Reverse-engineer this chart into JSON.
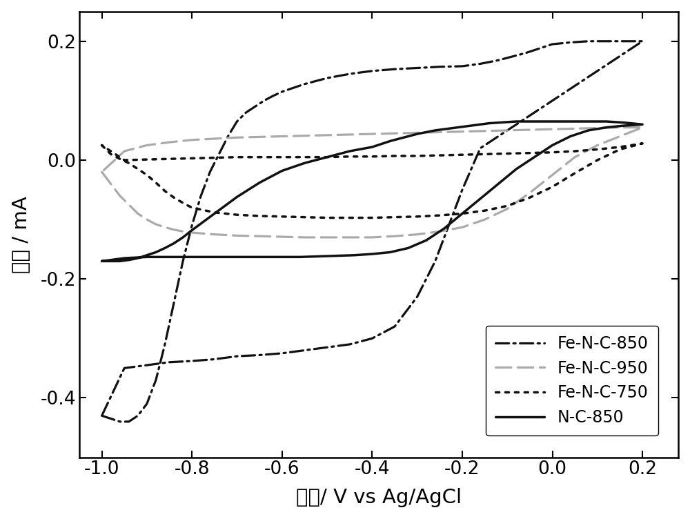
{
  "xlabel": "电势/ V vs Ag/AgCl",
  "ylabel": "电流 / mA",
  "xlim": [
    -1.05,
    0.28
  ],
  "ylim": [
    -0.5,
    0.25
  ],
  "xticks": [
    -1.0,
    -0.8,
    -0.6,
    -0.4,
    -0.2,
    0.0,
    0.2
  ],
  "yticks": [
    -0.4,
    -0.2,
    0.0,
    0.2
  ],
  "background_color": "#ffffff",
  "series": [
    {
      "label": "Fe-N-C-850",
      "color": "#111111",
      "linestyle": "dashdot",
      "linewidth": 2.3,
      "x": [
        -1.0,
        -0.98,
        -0.96,
        -0.94,
        -0.92,
        -0.9,
        -0.88,
        -0.86,
        -0.84,
        -0.82,
        -0.8,
        -0.78,
        -0.76,
        -0.74,
        -0.72,
        -0.7,
        -0.68,
        -0.66,
        -0.64,
        -0.62,
        -0.6,
        -0.55,
        -0.5,
        -0.45,
        -0.4,
        -0.35,
        -0.3,
        -0.25,
        -0.2,
        -0.18,
        -0.16,
        -0.14,
        -0.12,
        -0.1,
        -0.08,
        -0.06,
        -0.04,
        -0.02,
        0.0,
        0.04,
        0.08,
        0.12,
        0.16,
        0.2,
        0.2,
        0.18,
        0.16,
        0.14,
        0.12,
        0.1,
        0.08,
        0.06,
        0.04,
        0.02,
        0.0,
        -0.04,
        -0.08,
        -0.12,
        -0.16,
        -0.2,
        -0.24,
        -0.26,
        -0.28,
        -0.3,
        -0.35,
        -0.4,
        -0.45,
        -0.5,
        -0.55,
        -0.6,
        -0.65,
        -0.7,
        -0.75,
        -0.8,
        -0.85,
        -0.9,
        -0.95,
        -1.0
      ],
      "y": [
        -0.43,
        -0.435,
        -0.44,
        -0.44,
        -0.43,
        -0.41,
        -0.37,
        -0.31,
        -0.24,
        -0.17,
        -0.11,
        -0.06,
        -0.02,
        0.01,
        0.04,
        0.065,
        0.08,
        0.09,
        0.1,
        0.108,
        0.115,
        0.128,
        0.138,
        0.145,
        0.15,
        0.153,
        0.155,
        0.157,
        0.158,
        0.16,
        0.162,
        0.165,
        0.168,
        0.172,
        0.176,
        0.18,
        0.185,
        0.19,
        0.195,
        0.198,
        0.2,
        0.2,
        0.2,
        0.2,
        0.2,
        0.19,
        0.18,
        0.17,
        0.16,
        0.15,
        0.14,
        0.13,
        0.12,
        0.11,
        0.1,
        0.08,
        0.06,
        0.04,
        0.02,
        -0.05,
        -0.13,
        -0.17,
        -0.2,
        -0.23,
        -0.28,
        -0.3,
        -0.31,
        -0.315,
        -0.32,
        -0.325,
        -0.328,
        -0.33,
        -0.335,
        -0.338,
        -0.34,
        -0.345,
        -0.35,
        -0.43
      ]
    },
    {
      "label": "Fe-N-C-950",
      "color": "#aaaaaa",
      "linestyle": "dashed",
      "linewidth": 2.3,
      "x": [
        -1.0,
        -0.98,
        -0.96,
        -0.94,
        -0.92,
        -0.9,
        -0.88,
        -0.86,
        -0.84,
        -0.82,
        -0.8,
        -0.75,
        -0.7,
        -0.65,
        -0.6,
        -0.55,
        -0.5,
        -0.45,
        -0.4,
        -0.35,
        -0.3,
        -0.25,
        -0.2,
        -0.15,
        -0.1,
        -0.05,
        0.0,
        0.05,
        0.1,
        0.15,
        0.2,
        0.2,
        0.15,
        0.1,
        0.05,
        0.0,
        -0.05,
        -0.1,
        -0.15,
        -0.2,
        -0.25,
        -0.3,
        -0.35,
        -0.4,
        -0.45,
        -0.5,
        -0.55,
        -0.6,
        -0.65,
        -0.7,
        -0.75,
        -0.8,
        -0.85,
        -0.9,
        -0.95,
        -1.0
      ],
      "y": [
        -0.02,
        -0.04,
        -0.06,
        -0.075,
        -0.09,
        -0.1,
        -0.108,
        -0.113,
        -0.117,
        -0.12,
        -0.122,
        -0.125,
        -0.127,
        -0.128,
        -0.129,
        -0.13,
        -0.13,
        -0.13,
        -0.13,
        -0.128,
        -0.125,
        -0.12,
        -0.113,
        -0.1,
        -0.082,
        -0.055,
        -0.025,
        0.005,
        0.025,
        0.04,
        0.055,
        0.055,
        0.055,
        0.054,
        0.053,
        0.052,
        0.051,
        0.05,
        0.049,
        0.048,
        0.047,
        0.046,
        0.045,
        0.044,
        0.043,
        0.042,
        0.041,
        0.04,
        0.039,
        0.038,
        0.036,
        0.034,
        0.03,
        0.025,
        0.015,
        -0.02
      ]
    },
    {
      "label": "Fe-N-C-750",
      "color": "#111111",
      "linestyle": "dotted",
      "linewidth": 2.5,
      "x": [
        -1.0,
        -0.98,
        -0.96,
        -0.94,
        -0.92,
        -0.9,
        -0.88,
        -0.86,
        -0.84,
        -0.82,
        -0.8,
        -0.75,
        -0.7,
        -0.65,
        -0.6,
        -0.55,
        -0.5,
        -0.45,
        -0.4,
        -0.35,
        -0.3,
        -0.25,
        -0.2,
        -0.15,
        -0.1,
        -0.05,
        0.0,
        0.05,
        0.1,
        0.15,
        0.2,
        0.2,
        0.15,
        0.1,
        0.05,
        0.0,
        -0.05,
        -0.1,
        -0.15,
        -0.2,
        -0.25,
        -0.3,
        -0.35,
        -0.4,
        -0.45,
        -0.5,
        -0.55,
        -0.6,
        -0.65,
        -0.7,
        -0.75,
        -0.8,
        -0.85,
        -0.9,
        -0.95,
        -1.0
      ],
      "y": [
        0.025,
        0.01,
        0.002,
        -0.005,
        -0.015,
        -0.025,
        -0.038,
        -0.052,
        -0.063,
        -0.072,
        -0.08,
        -0.088,
        -0.092,
        -0.094,
        -0.095,
        -0.096,
        -0.097,
        -0.097,
        -0.097,
        -0.096,
        -0.095,
        -0.093,
        -0.09,
        -0.085,
        -0.077,
        -0.063,
        -0.045,
        -0.022,
        0.0,
        0.018,
        0.028,
        0.028,
        0.022,
        0.018,
        0.015,
        0.013,
        0.012,
        0.011,
        0.01,
        0.009,
        0.008,
        0.007,
        0.007,
        0.006,
        0.006,
        0.005,
        0.005,
        0.005,
        0.005,
        0.005,
        0.004,
        0.003,
        0.002,
        0.001,
        0.0,
        0.025
      ]
    },
    {
      "label": "N-C-850",
      "color": "#111111",
      "linestyle": "solid",
      "linewidth": 2.5,
      "x": [
        -1.0,
        -0.98,
        -0.96,
        -0.94,
        -0.92,
        -0.9,
        -0.88,
        -0.86,
        -0.84,
        -0.82,
        -0.8,
        -0.75,
        -0.7,
        -0.65,
        -0.6,
        -0.55,
        -0.5,
        -0.45,
        -0.4,
        -0.38,
        -0.36,
        -0.34,
        -0.32,
        -0.3,
        -0.28,
        -0.26,
        -0.24,
        -0.22,
        -0.2,
        -0.18,
        -0.16,
        -0.14,
        -0.12,
        -0.1,
        -0.08,
        -0.06,
        -0.04,
        -0.02,
        0.0,
        0.04,
        0.08,
        0.12,
        0.16,
        0.2,
        0.2,
        0.16,
        0.12,
        0.08,
        0.04,
        0.0,
        -0.04,
        -0.08,
        -0.12,
        -0.16,
        -0.2,
        -0.24,
        -0.28,
        -0.32,
        -0.36,
        -0.4,
        -0.44,
        -0.48,
        -0.52,
        -0.56,
        -0.6,
        -0.65,
        -0.7,
        -0.75,
        -0.8,
        -0.85,
        -0.9,
        -0.95,
        -1.0
      ],
      "y": [
        -0.17,
        -0.17,
        -0.17,
        -0.168,
        -0.165,
        -0.16,
        -0.155,
        -0.148,
        -0.14,
        -0.13,
        -0.118,
        -0.09,
        -0.062,
        -0.038,
        -0.018,
        -0.005,
        0.005,
        0.015,
        0.022,
        0.027,
        0.032,
        0.036,
        0.04,
        0.044,
        0.047,
        0.05,
        0.052,
        0.054,
        0.056,
        0.058,
        0.06,
        0.062,
        0.063,
        0.064,
        0.065,
        0.065,
        0.065,
        0.065,
        0.065,
        0.065,
        0.065,
        0.065,
        0.063,
        0.06,
        0.06,
        0.058,
        0.055,
        0.05,
        0.04,
        0.025,
        0.005,
        -0.015,
        -0.04,
        -0.065,
        -0.09,
        -0.115,
        -0.135,
        -0.148,
        -0.155,
        -0.158,
        -0.16,
        -0.161,
        -0.162,
        -0.163,
        -0.163,
        -0.163,
        -0.163,
        -0.163,
        -0.163,
        -0.163,
        -0.163,
        -0.165,
        -0.17
      ]
    }
  ]
}
